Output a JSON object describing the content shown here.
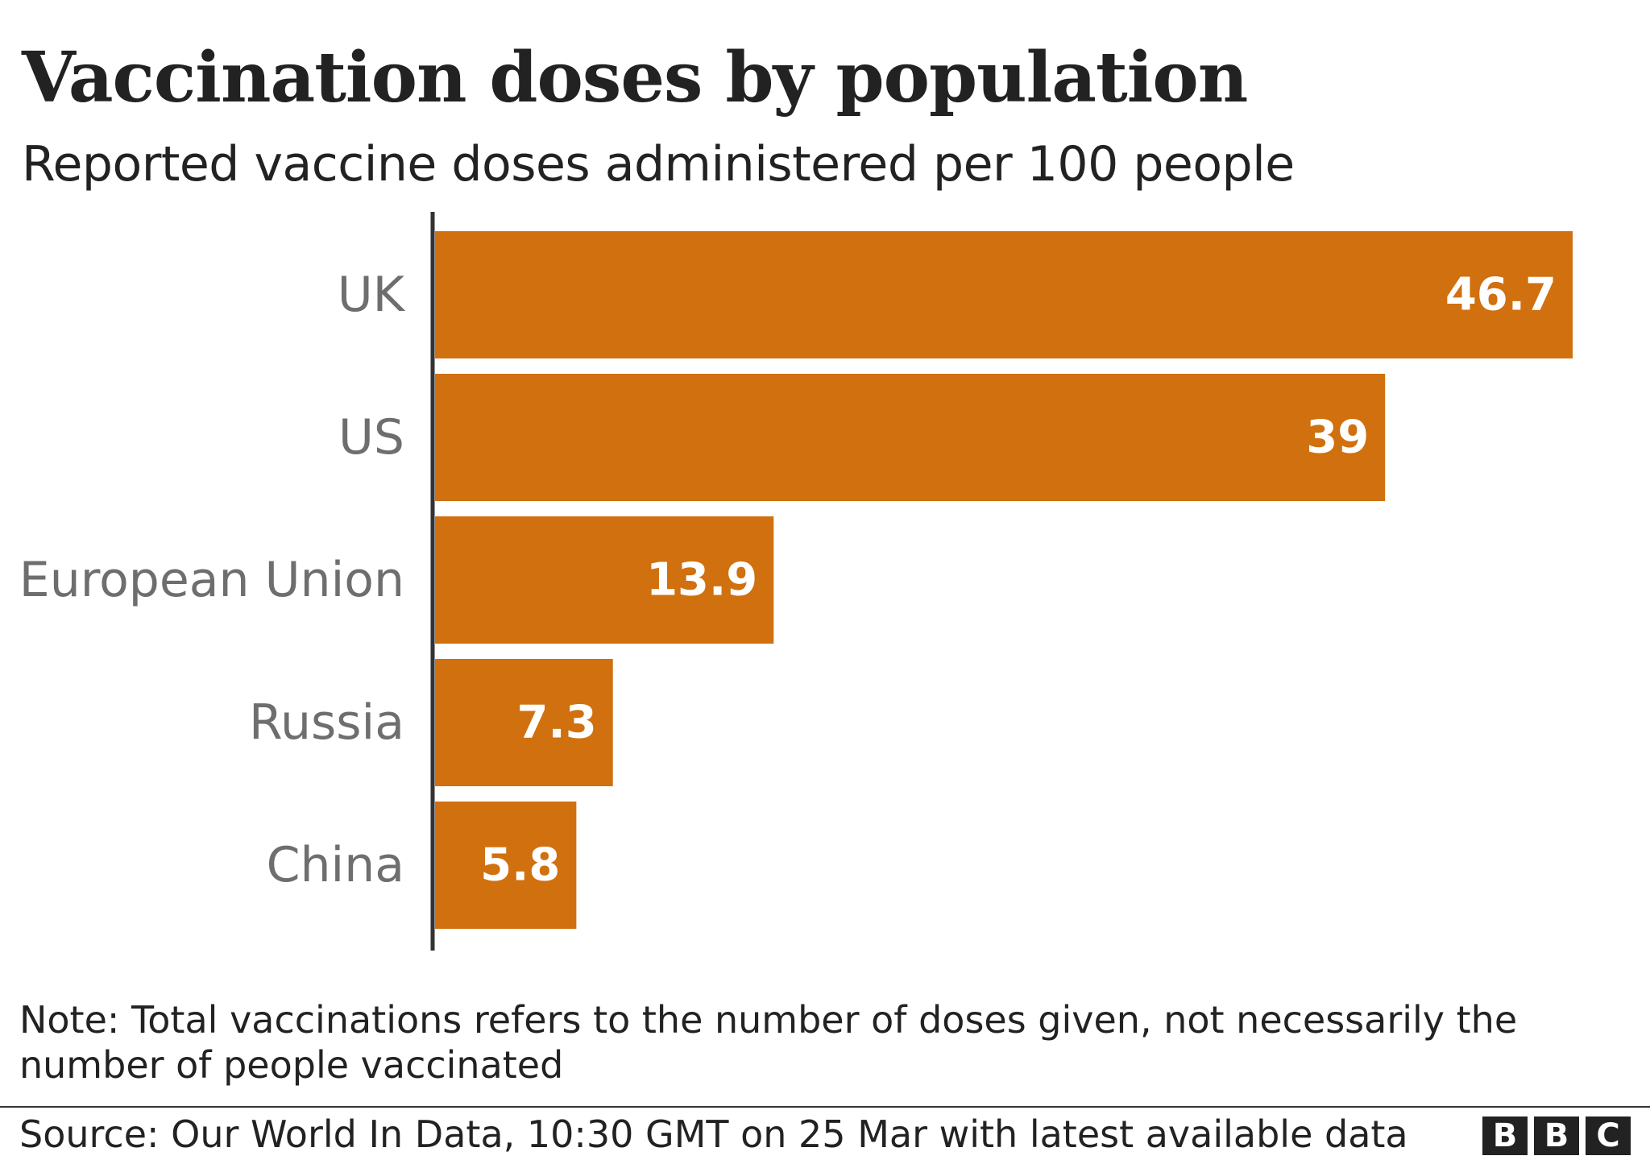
{
  "title": "Vaccination doses by population",
  "subtitle": "Reported vaccine doses administered per 100 people",
  "note": "Note: Total vaccinations refers to the number of doses given, not necessarily the number of people vaccinated",
  "source": "Source: Our World In Data, 10:30 GMT on 25 Mar with latest available data",
  "logo": [
    "B",
    "B",
    "C"
  ],
  "colors": {
    "bar": "#d0700e",
    "axis": "#333333",
    "category_text": "#6e6e6e",
    "value_text": "#ffffff"
  },
  "chart_data": {
    "type": "bar",
    "orientation": "horizontal",
    "title": "Vaccination doses by population",
    "subtitle": "Reported vaccine doses administered per 100 people",
    "categories": [
      "UK",
      "US",
      "European Union",
      "Russia",
      "China"
    ],
    "values": [
      46.7,
      39,
      13.9,
      7.3,
      5.8
    ],
    "value_labels": [
      "46.7",
      "39",
      "13.9",
      "7.3",
      "5.8"
    ],
    "xlim": [
      0,
      46.7
    ],
    "grid": false,
    "legend": "none"
  }
}
